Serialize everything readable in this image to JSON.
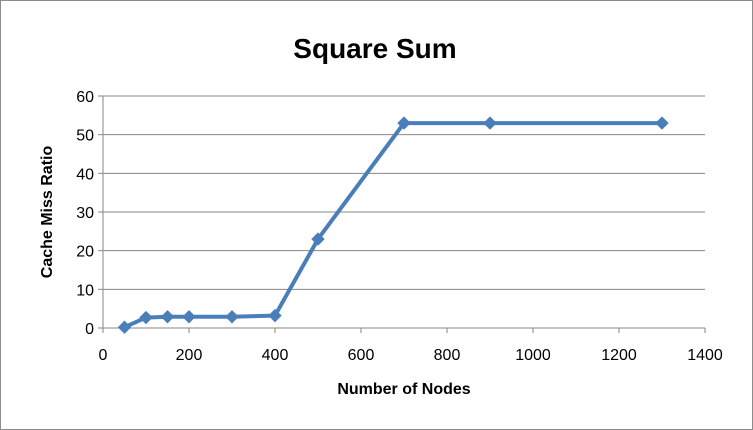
{
  "chart_data": {
    "type": "line",
    "title": "Square Sum",
    "xlabel": "Number of Nodes",
    "ylabel": "Cache Miss Ratio",
    "xlim": [
      0,
      1400
    ],
    "ylim": [
      0,
      60
    ],
    "xticks": [
      0,
      200,
      400,
      600,
      800,
      1000,
      1200,
      1400
    ],
    "yticks": [
      0,
      10,
      20,
      30,
      40,
      50,
      60
    ],
    "grid": "horizontal",
    "legend": "none",
    "series": [
      {
        "color": "#4A7EBB",
        "marker": "diamond",
        "x": [
          50,
          100,
          150,
          200,
          300,
          400,
          500,
          700,
          900,
          1300
        ],
        "y": [
          0.2,
          2.7,
          2.9,
          2.9,
          2.9,
          3.2,
          23,
          53,
          53,
          53
        ]
      }
    ]
  }
}
